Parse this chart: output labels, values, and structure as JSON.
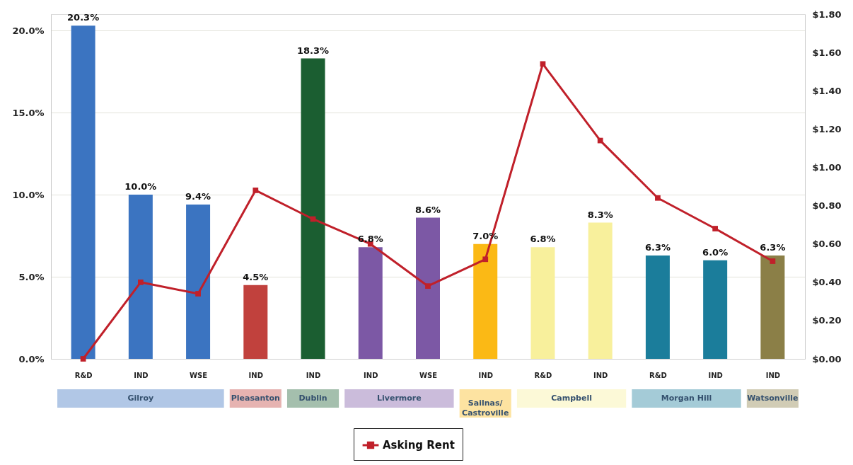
{
  "chart_data": {
    "type": "bar",
    "categories": [
      "R&D",
      "IND",
      "WSE",
      "IND",
      "IND",
      "IND",
      "WSE",
      "IND",
      "R&D",
      "IND",
      "R&D",
      "IND",
      "IND"
    ],
    "series": [
      {
        "values": [
          20.3,
          10.0,
          9.4,
          4.5,
          18.3,
          6.8,
          8.6,
          7.0,
          6.8,
          8.3,
          6.3,
          6.0,
          6.3
        ],
        "value_labels": [
          "20.3%",
          "10.0%",
          "9.4%",
          "4.5%",
          "18.3%",
          "6.8%",
          "8.6%",
          "7.0%",
          "6.8%",
          "8.3%",
          "6.3%",
          "6.0%",
          "6.3%"
        ],
        "colors": [
          "#3b74c1",
          "#3b74c1",
          "#3b74c1",
          "#c1413d",
          "#1b5e31",
          "#7c58a5",
          "#7c58a5",
          "#fbb915",
          "#f8f09c",
          "#f8f09c",
          "#1b7d9b",
          "#1b7d9b",
          "#8b7f47"
        ]
      },
      {
        "type": "line",
        "name": "Asking Rent",
        "color": "#c0202a",
        "axis": "y2",
        "marker": "square",
        "values": [
          0.0,
          0.4,
          0.34,
          0.88,
          0.73,
          0.6,
          0.38,
          0.52,
          1.54,
          1.14,
          0.84,
          0.68,
          0.51
        ]
      }
    ],
    "ylim": [
      0,
      21
    ],
    "yticks": [
      {
        "value": 0,
        "label": "0.0%"
      },
      {
        "value": 5,
        "label": "5.0%"
      },
      {
        "value": 10,
        "label": "10.0%"
      },
      {
        "value": 15,
        "label": "15.0%"
      },
      {
        "value": 20,
        "label": "20.0%"
      }
    ],
    "y2lim": [
      0,
      1.8
    ],
    "y2ticks": [
      {
        "value": 0,
        "label": "$0.00"
      },
      {
        "value": 0.2,
        "label": "$0.20"
      },
      {
        "value": 0.4,
        "label": "$0.40"
      },
      {
        "value": 0.6,
        "label": "$0.60"
      },
      {
        "value": 0.8,
        "label": "$0.80"
      },
      {
        "value": 1.0,
        "label": "$1.00"
      },
      {
        "value": 1.2,
        "label": "$1.20"
      },
      {
        "value": 1.4,
        "label": "$1.40"
      },
      {
        "value": 1.6,
        "label": "$1.60"
      },
      {
        "value": 1.8,
        "label": "$1.80"
      }
    ],
    "grid": "y",
    "legend": "bottom",
    "annotations": [
      "Gilroy",
      "Pleasanton",
      "Dublin",
      "Livermore",
      "Sailnas/\nCastroville",
      "Campbell",
      "Morgan Hill",
      "Watsonville"
    ]
  }
}
